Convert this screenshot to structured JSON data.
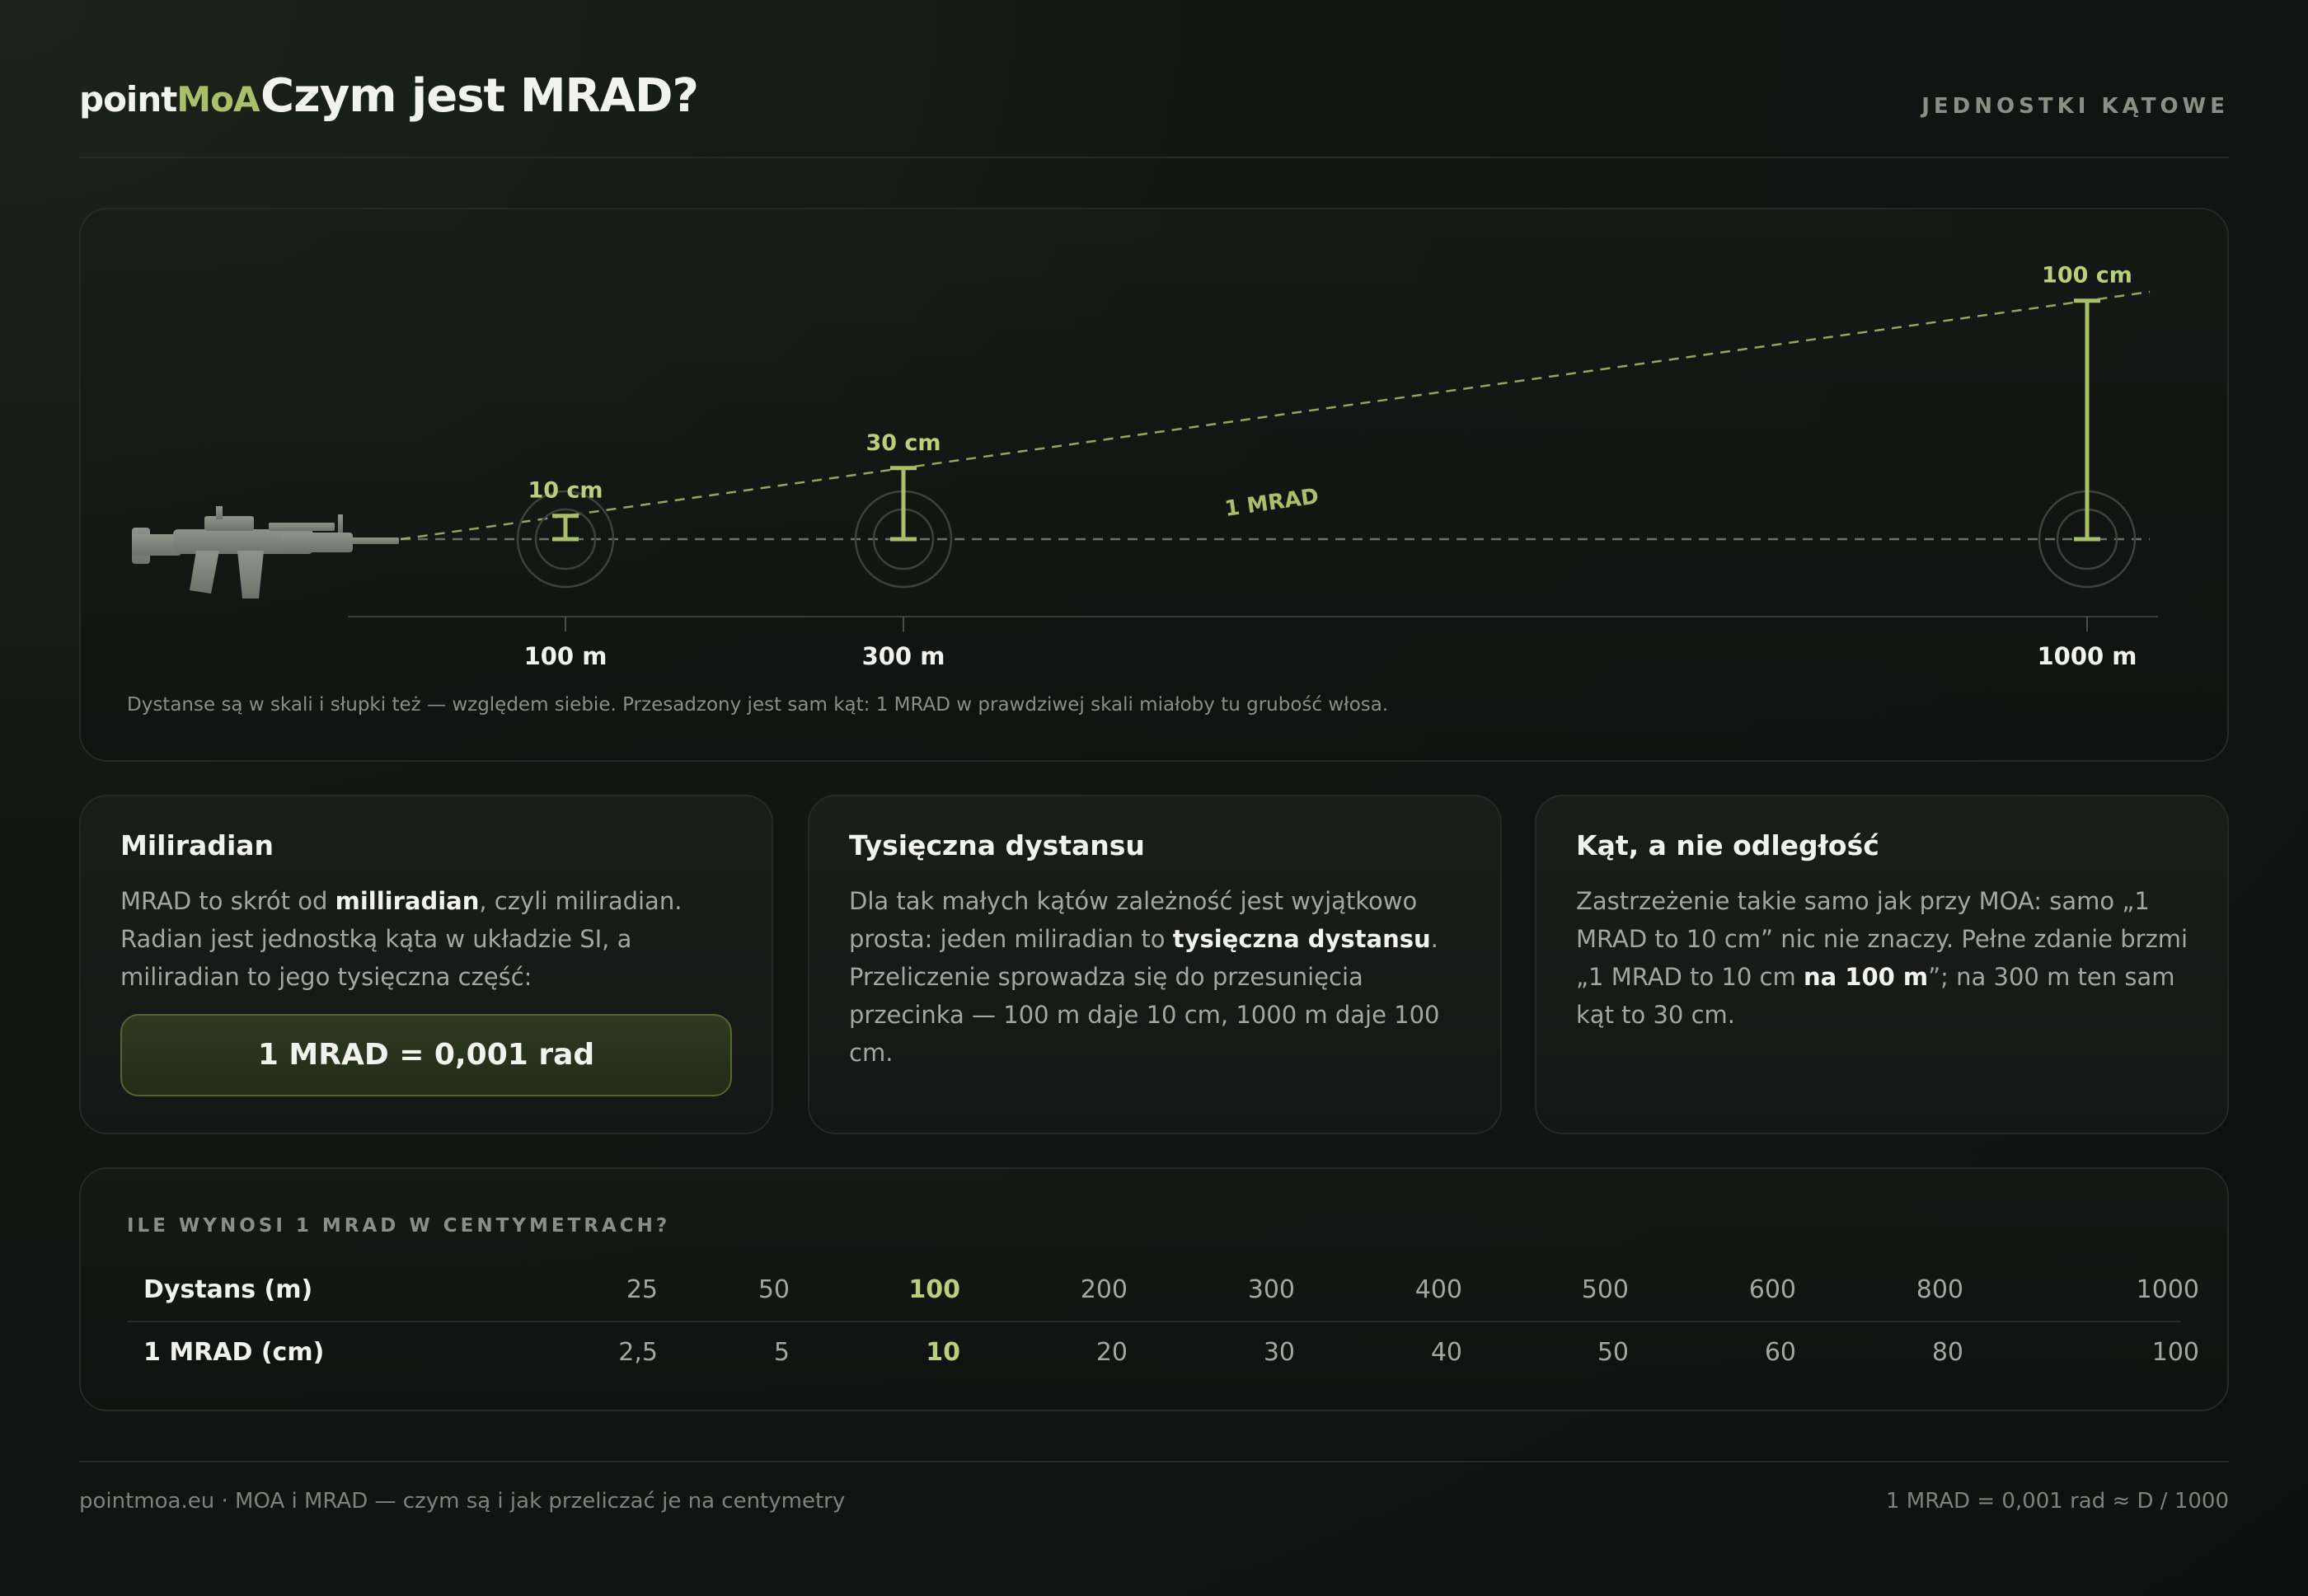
{
  "header": {
    "logo_main": "point",
    "logo_accent": "MoA",
    "title": "Czym jest MRAD?",
    "tagline": "JEDNOSTKI KĄTOWE"
  },
  "diagram": {
    "angle_label": "1 MRAD",
    "targets": [
      {
        "distance": "100 m",
        "size": "10 cm"
      },
      {
        "distance": "300 m",
        "size": "30 cm"
      },
      {
        "distance": "1000 m",
        "size": "100 cm"
      }
    ],
    "note": "Dystanse są w skali i słupki też — względem siebie. Przesadzony jest sam kąt: 1 MRAD w prawdziwej skali miałoby tu grubość włosa.",
    "colors": {
      "accent": "#a8c06a",
      "muted": "#8a8f86"
    }
  },
  "cards": [
    {
      "title": "Miliradian",
      "text": [
        {
          "t": "MRAD to skrót od "
        },
        {
          "t": "milliradian",
          "b": true
        },
        {
          "t": ", czyli miliradian. Radian jest jednostką kąta w układzie SI, a miliradian to jego tysięczna część:"
        }
      ],
      "formula": "1 MRAD = 0,001 rad"
    },
    {
      "title": "Tysięczna dystansu",
      "text": [
        {
          "t": "Dla tak małych kątów zależność jest wyjątkowo prosta: jeden miliradian to "
        },
        {
          "t": "tysięczna dystansu",
          "b": true
        },
        {
          "t": ". Przeliczenie sprowadza się do przesunięcia przecinka — 100 m daje 10 cm, 1000 m daje 100 cm."
        }
      ]
    },
    {
      "title": "Kąt, a nie odległość",
      "text": [
        {
          "t": "Zastrzeżenie takie samo jak przy MOA: samo „1 MRAD to 10 cm” nic nie znaczy. Pełne zdanie brzmi „1 MRAD to 10 cm "
        },
        {
          "t": "na 100 m",
          "b": true
        },
        {
          "t": "”; na 300 m ten sam kąt to 30 cm."
        }
      ]
    }
  ],
  "table": {
    "label": "ILE WYNOSI 1 MRAD W CENTYMETRACH?",
    "row1_head": "Dystans (m)",
    "row2_head": "1 MRAD (cm)",
    "distances": [
      "25",
      "50",
      "100",
      "200",
      "300",
      "400",
      "500",
      "600",
      "800",
      "1000"
    ],
    "values": [
      "2,5",
      "5",
      "10",
      "20",
      "30",
      "40",
      "50",
      "60",
      "80",
      "100"
    ],
    "highlight_index": 2
  },
  "footer": {
    "left": "pointmoa.eu · MOA i MRAD — czym są i jak przeliczać je na centymetry",
    "right": "1 MRAD = 0,001 rad ≈ D / 1000"
  }
}
